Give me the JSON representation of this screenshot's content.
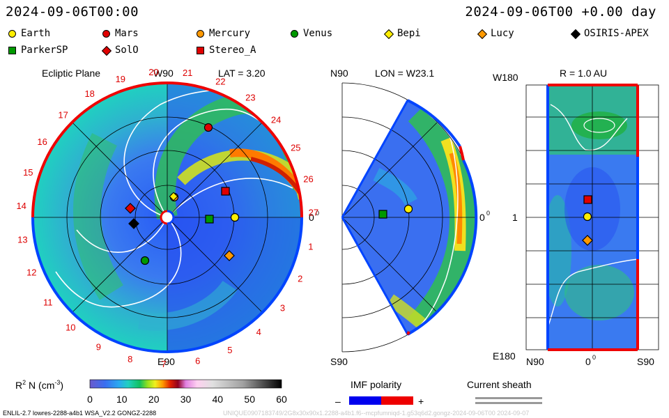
{
  "header": {
    "left_time": "2024-09-06T00:00",
    "right_time": "2024-09-06T00 +0.00 day"
  },
  "legend": [
    {
      "label": "Earth",
      "shape": "circle",
      "color": "#ffee00"
    },
    {
      "label": "Mars",
      "shape": "circle",
      "color": "#e00000"
    },
    {
      "label": "Mercury",
      "shape": "circle",
      "color": "#ff9900"
    },
    {
      "label": "Venus",
      "shape": "circle",
      "color": "#009900"
    },
    {
      "label": "Bepi",
      "shape": "diamond",
      "color": "#ffee00"
    },
    {
      "label": "Lucy",
      "shape": "diamond",
      "color": "#ff9900"
    },
    {
      "label": "OSIRIS-APEX",
      "shape": "diamond",
      "color": "#000000"
    },
    {
      "label": "ParkerSP",
      "shape": "square",
      "color": "#009900"
    },
    {
      "label": "SolO",
      "shape": "diamond",
      "color": "#e00000"
    },
    {
      "label": "Stereo_A",
      "shape": "square",
      "color": "#e00000"
    }
  ],
  "panels": {
    "ecliptic": {
      "title": "Ecliptic Plane",
      "top_label": "W90",
      "bottom_label": "E90",
      "right_label": "0",
      "lat_label": "LAT = 3.20",
      "degree": "0",
      "carrington_numbers": [
        "20",
        "21",
        "22",
        "23",
        "24",
        "25",
        "26",
        "27",
        "1",
        "2",
        "3",
        "4",
        "5",
        "6",
        "7",
        "8",
        "9",
        "10",
        "11",
        "12",
        "13",
        "14",
        "15",
        "16",
        "17",
        "18",
        "19"
      ]
    },
    "meridional": {
      "top_label": "N90",
      "bottom_label": "S90",
      "right_label": "0",
      "lon_label": "LON = W23.1",
      "degree": "0"
    },
    "map": {
      "r_label": "R = 1.0 AU",
      "top_left": "W180",
      "bottom_left": "E180",
      "mid_left": "1",
      "x_left": "N90",
      "x_mid": "0",
      "x_right": "S90",
      "degree": "0"
    }
  },
  "colorbar": {
    "label": "R",
    "label_sup": "2",
    "label_rest": " N (cm",
    "label_exp": "-3",
    "label_close": ")",
    "ticks": [
      "0",
      "10",
      "20",
      "30",
      "40",
      "50",
      "60"
    ],
    "range": [
      0,
      60
    ]
  },
  "imf": {
    "label": "IMF polarity",
    "minus": "–",
    "plus": "+",
    "neg_color": "#0000ee",
    "pos_color": "#ee0000"
  },
  "sheath": {
    "label": "Current sheath"
  },
  "footer": {
    "left": "ENLIL-2.7 lowres-2288-a4b1 WSA_V2.2 GONGZ-2288",
    "right": "UNIQUE0907183749/2G8x30x90x1.2288-a4b1.f6--mcpfumniqd-1.g53q6d2.gongz-2024-09-06T00 2024-09-07"
  },
  "colors": {
    "ring_red": "#ee0000",
    "ring_blue": "#0044ff",
    "background_blue": "#3a6ff0"
  }
}
